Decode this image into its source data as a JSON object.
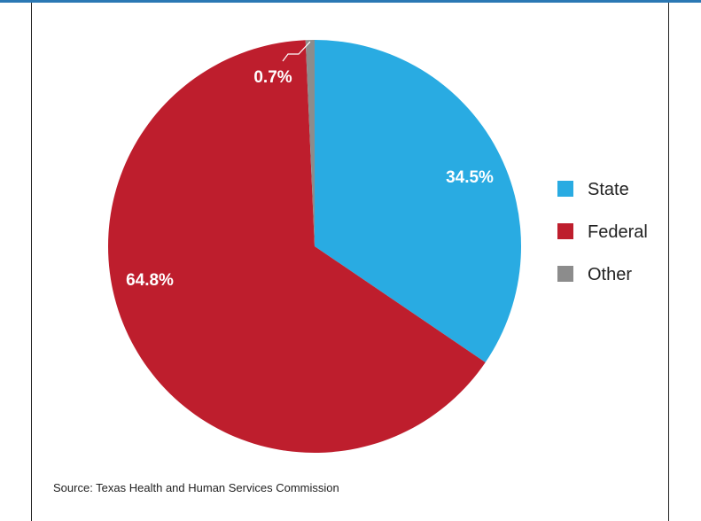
{
  "chart_data": {
    "type": "pie",
    "slices": [
      {
        "label": "State",
        "value": 34.5,
        "display": "34.5%",
        "color": "#29abe2",
        "label_color": "#ffffff"
      },
      {
        "label": "Federal",
        "value": 64.8,
        "display": "64.8%",
        "color": "#be1e2d",
        "label_color": "#ffffff"
      },
      {
        "label": "Other",
        "value": 0.7,
        "display": "0.7%",
        "color": "#8c8c8c",
        "label_color": "#ffffff"
      }
    ],
    "legend_position": "right",
    "start_angle": "12 o'clock, clockwise"
  },
  "source": "Source: Texas Health and Human Services Commission",
  "colors": {
    "frame_accent": "#2a78b4",
    "border": "#222222"
  }
}
